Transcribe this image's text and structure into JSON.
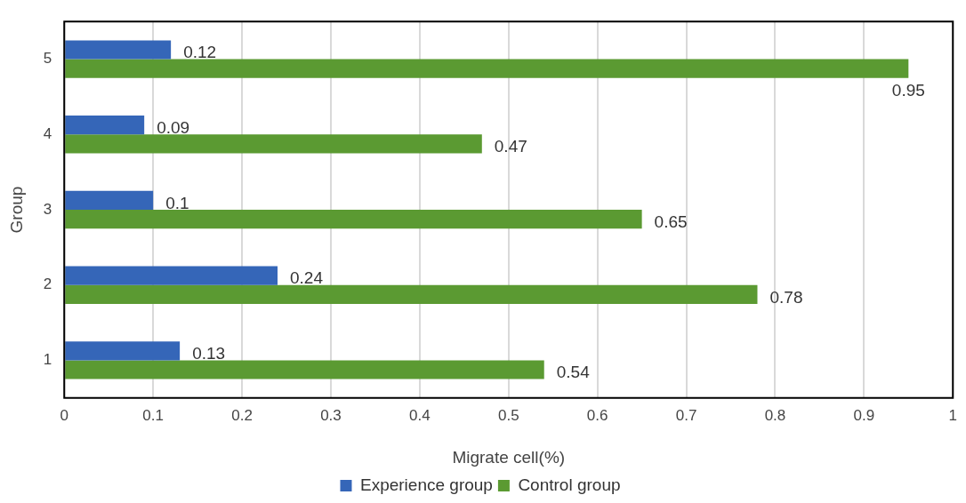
{
  "chart_data": {
    "type": "bar",
    "orientation": "horizontal",
    "xlabel": "Migrate cell(%)",
    "ylabel": "Group",
    "categories": [
      "5",
      "4",
      "3",
      "2",
      "1"
    ],
    "series": [
      {
        "name": "Experience group",
        "color": "#3566b8",
        "values": [
          0.12,
          0.09,
          0.1,
          0.24,
          0.13
        ]
      },
      {
        "name": "Control group",
        "color": "#5b9a32",
        "values": [
          0.95,
          0.47,
          0.65,
          0.78,
          0.54
        ]
      }
    ],
    "xlim": [
      0,
      1
    ],
    "xticks": [
      0,
      0.1,
      0.2,
      0.3,
      0.4,
      0.5,
      0.6,
      0.7,
      0.8,
      0.9,
      1
    ],
    "grid": "x",
    "legend": "bottom",
    "data_labels": true
  }
}
